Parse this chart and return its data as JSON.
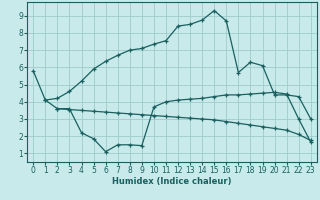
{
  "line1_x": [
    0,
    1,
    2,
    3,
    4,
    5,
    6,
    7,
    8,
    9,
    10,
    11,
    12,
    13,
    14,
    15,
    16,
    17,
    18,
    19,
    20,
    21,
    22,
    23
  ],
  "line1_y": [
    5.8,
    4.1,
    4.2,
    4.6,
    5.2,
    5.9,
    6.35,
    6.7,
    7.0,
    7.1,
    7.35,
    7.55,
    8.4,
    8.5,
    8.75,
    9.3,
    8.7,
    5.7,
    6.3,
    6.1,
    4.4,
    4.4,
    4.3,
    3.0
  ],
  "line2_x": [
    1,
    2,
    3,
    4,
    5,
    6,
    7,
    8,
    9,
    10,
    11,
    12,
    13,
    14,
    15,
    16,
    17,
    18,
    19,
    20,
    21,
    22,
    23
  ],
  "line2_y": [
    4.1,
    3.6,
    3.6,
    2.2,
    1.85,
    1.1,
    1.5,
    1.5,
    1.45,
    3.7,
    4.0,
    4.1,
    4.15,
    4.2,
    4.3,
    4.4,
    4.4,
    4.45,
    4.5,
    4.55,
    4.45,
    3.0,
    1.65
  ],
  "line3_x": [
    2,
    3,
    4,
    5,
    6,
    7,
    8,
    9,
    10,
    11,
    12,
    13,
    14,
    15,
    16,
    17,
    18,
    19,
    20,
    21,
    22,
    23
  ],
  "line3_y": [
    3.6,
    3.55,
    3.5,
    3.45,
    3.4,
    3.35,
    3.3,
    3.25,
    3.2,
    3.15,
    3.1,
    3.05,
    3.0,
    2.95,
    2.85,
    2.75,
    2.65,
    2.55,
    2.45,
    2.35,
    2.1,
    1.75
  ],
  "bg_color": "#c8eaea",
  "grid_color": "#a0cccc",
  "line_color": "#1a6060",
  "xlabel": "Humidex (Indice chaleur)",
  "xlim": [
    -0.5,
    23.5
  ],
  "ylim": [
    0.5,
    9.8
  ],
  "yticks": [
    1,
    2,
    3,
    4,
    5,
    6,
    7,
    8,
    9
  ],
  "xticks": [
    0,
    1,
    2,
    3,
    4,
    5,
    6,
    7,
    8,
    9,
    10,
    11,
    12,
    13,
    14,
    15,
    16,
    17,
    18,
    19,
    20,
    21,
    22,
    23
  ],
  "xlabel_fontsize": 6.0,
  "tick_fontsize": 5.5
}
